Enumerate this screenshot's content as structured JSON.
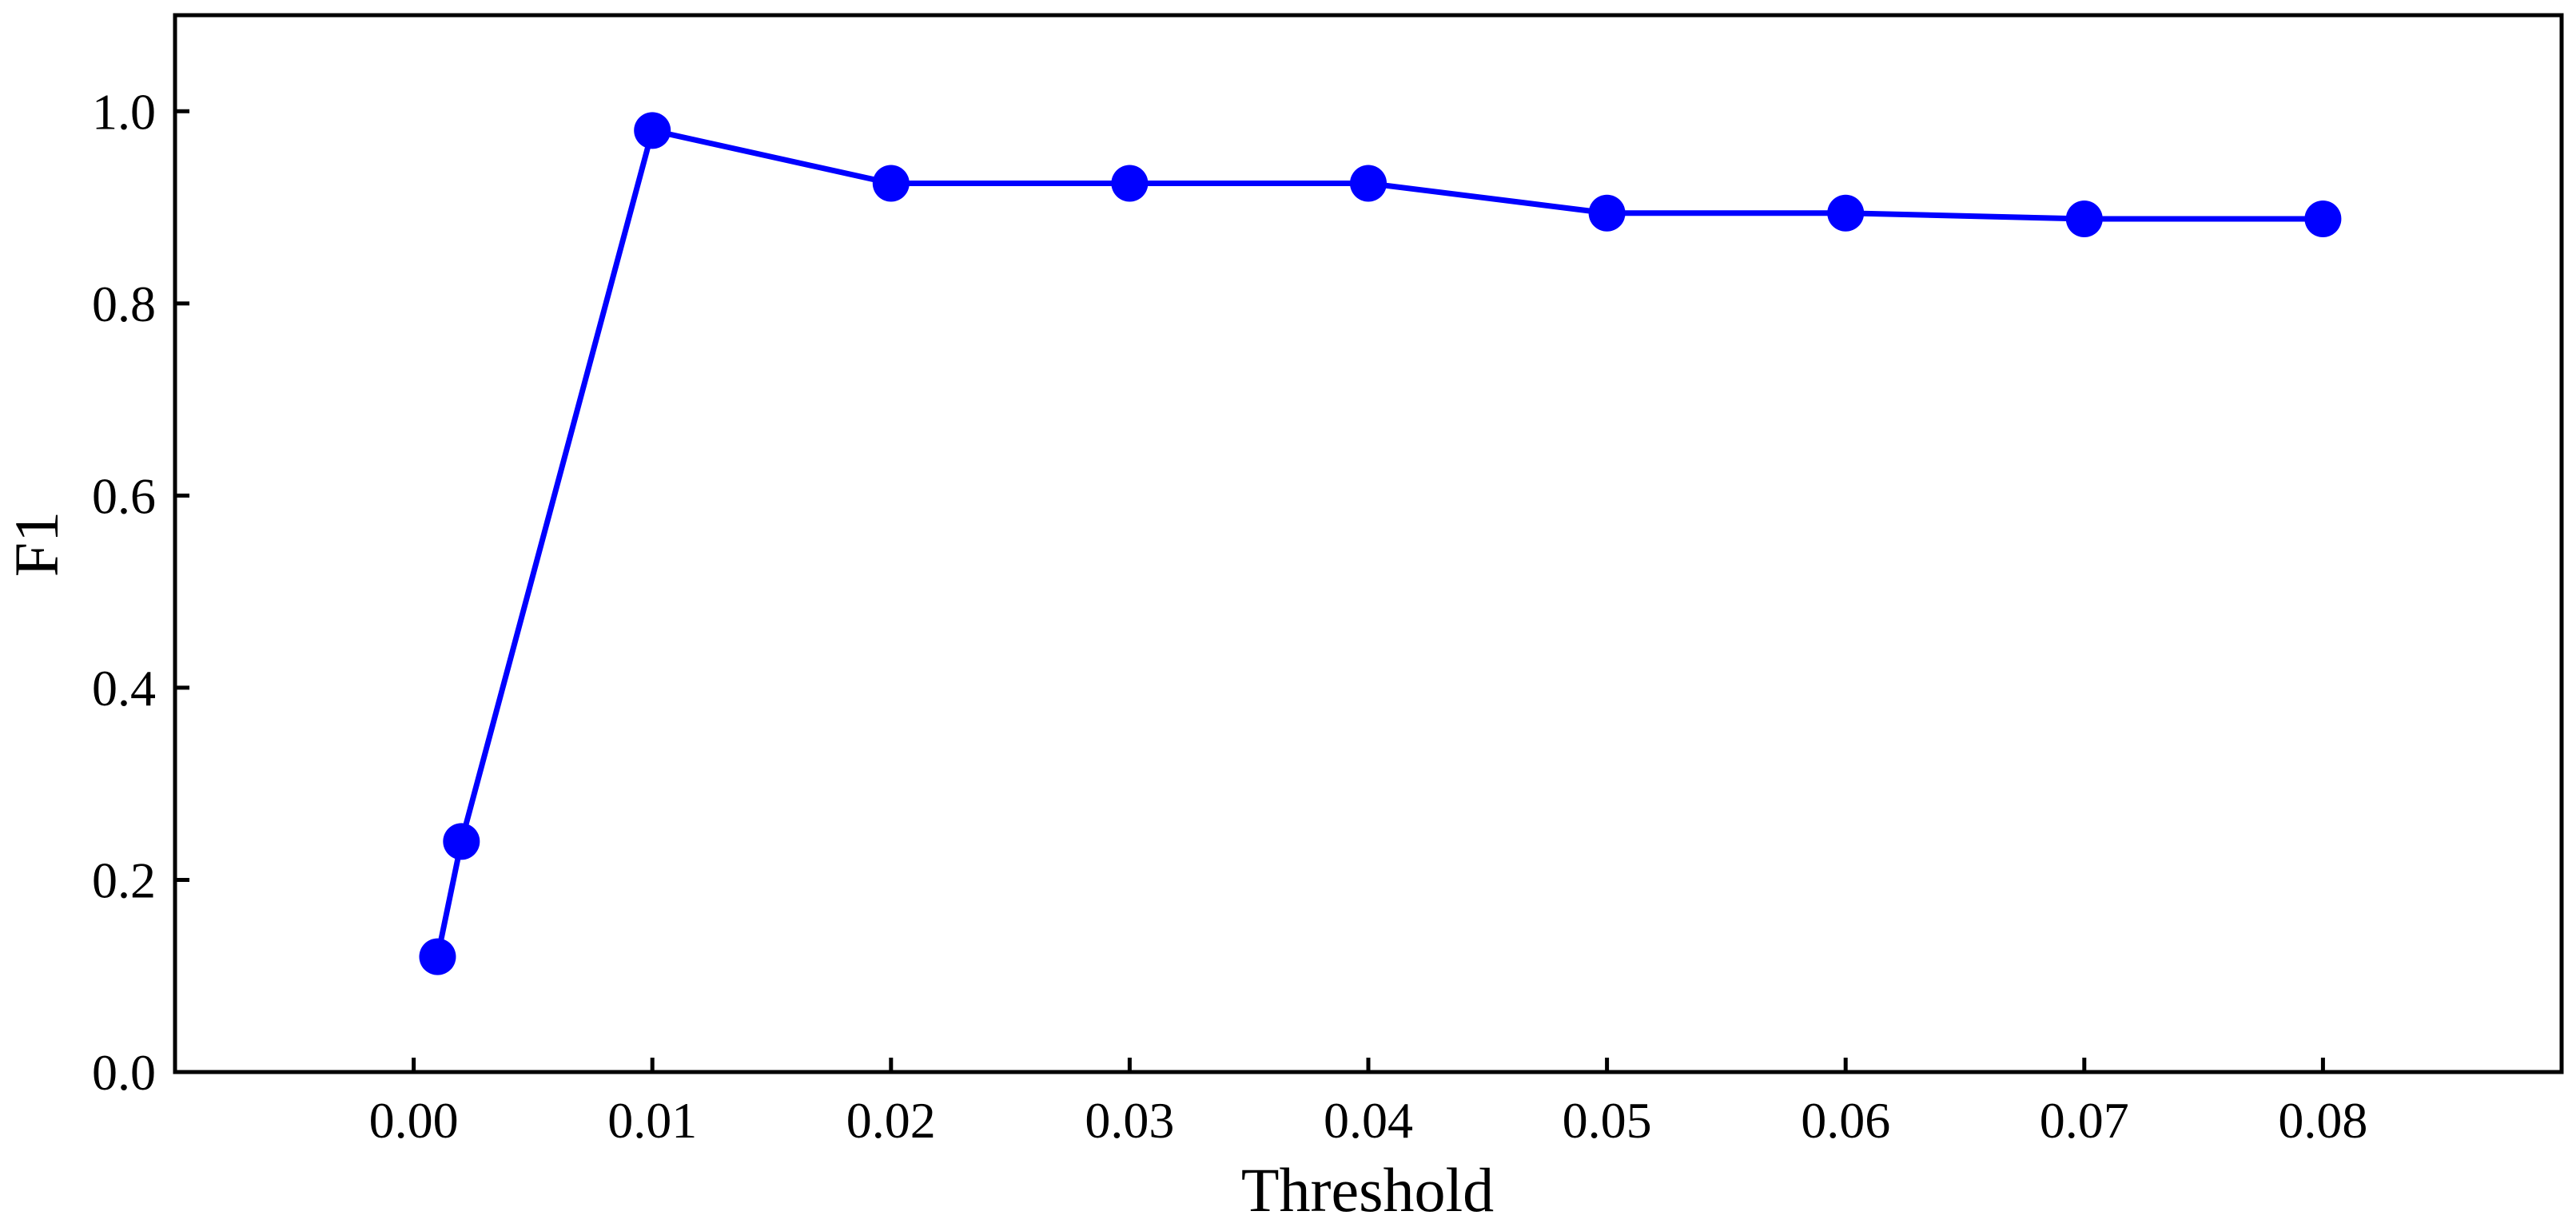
{
  "chart_data": {
    "type": "line",
    "title": "",
    "xlabel": "Threshold",
    "ylabel": "F1",
    "x": [
      0.001,
      0.002,
      0.01,
      0.02,
      0.03,
      0.04,
      0.05,
      0.06,
      0.07,
      0.08
    ],
    "series": [
      {
        "values": [
          0.12,
          0.24,
          0.98,
          0.925,
          0.925,
          0.925,
          0.894,
          0.894,
          0.888,
          0.888
        ]
      }
    ],
    "xlim": [
      -0.01,
      0.09
    ],
    "ylim": [
      0.0,
      1.1
    ],
    "xticks": [
      0.0,
      0.01,
      0.02,
      0.03,
      0.04,
      0.05,
      0.06,
      0.07,
      0.08
    ],
    "xtick_labels": [
      "0.00",
      "0.01",
      "0.02",
      "0.03",
      "0.04",
      "0.05",
      "0.06",
      "0.07",
      "0.08"
    ],
    "yticks": [
      0.0,
      0.2,
      0.4,
      0.6,
      0.8,
      1.0
    ],
    "ytick_labels": [
      "0.0",
      "0.2",
      "0.4",
      "0.6",
      "0.8",
      "1.0"
    ],
    "grid": false,
    "legend": "none",
    "colors": {
      "series": "#0000ff",
      "axes": "#000000"
    }
  }
}
